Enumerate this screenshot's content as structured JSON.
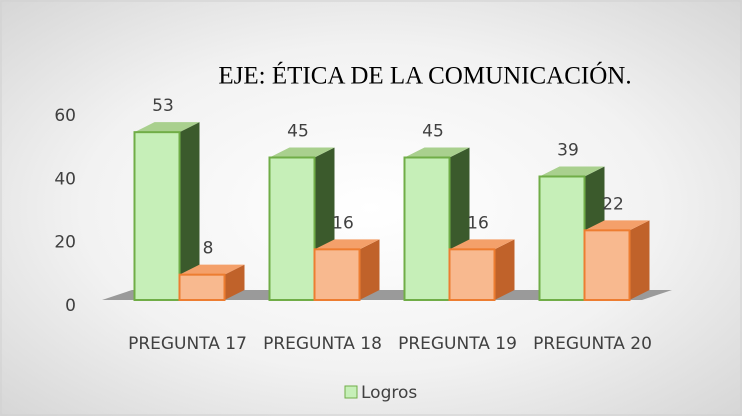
{
  "chart_data": {
    "type": "bar",
    "title": "EJE: ÉTICA DE LA COMUNICACIÓN.",
    "categories": [
      "PREGUNTA 17",
      "PREGUNTA 18",
      "PREGUNTA 19",
      "PREGUNTA 20"
    ],
    "series": [
      {
        "name": "Logros",
        "color": "#c6efb8",
        "values": [
          53,
          45,
          45,
          39
        ]
      },
      {
        "color": "#f8b98f",
        "values": [
          8,
          16,
          16,
          22
        ]
      }
    ],
    "ylim": [
      0,
      60
    ],
    "yticks": [
      0,
      20,
      40,
      60
    ],
    "legend": "bottom"
  }
}
